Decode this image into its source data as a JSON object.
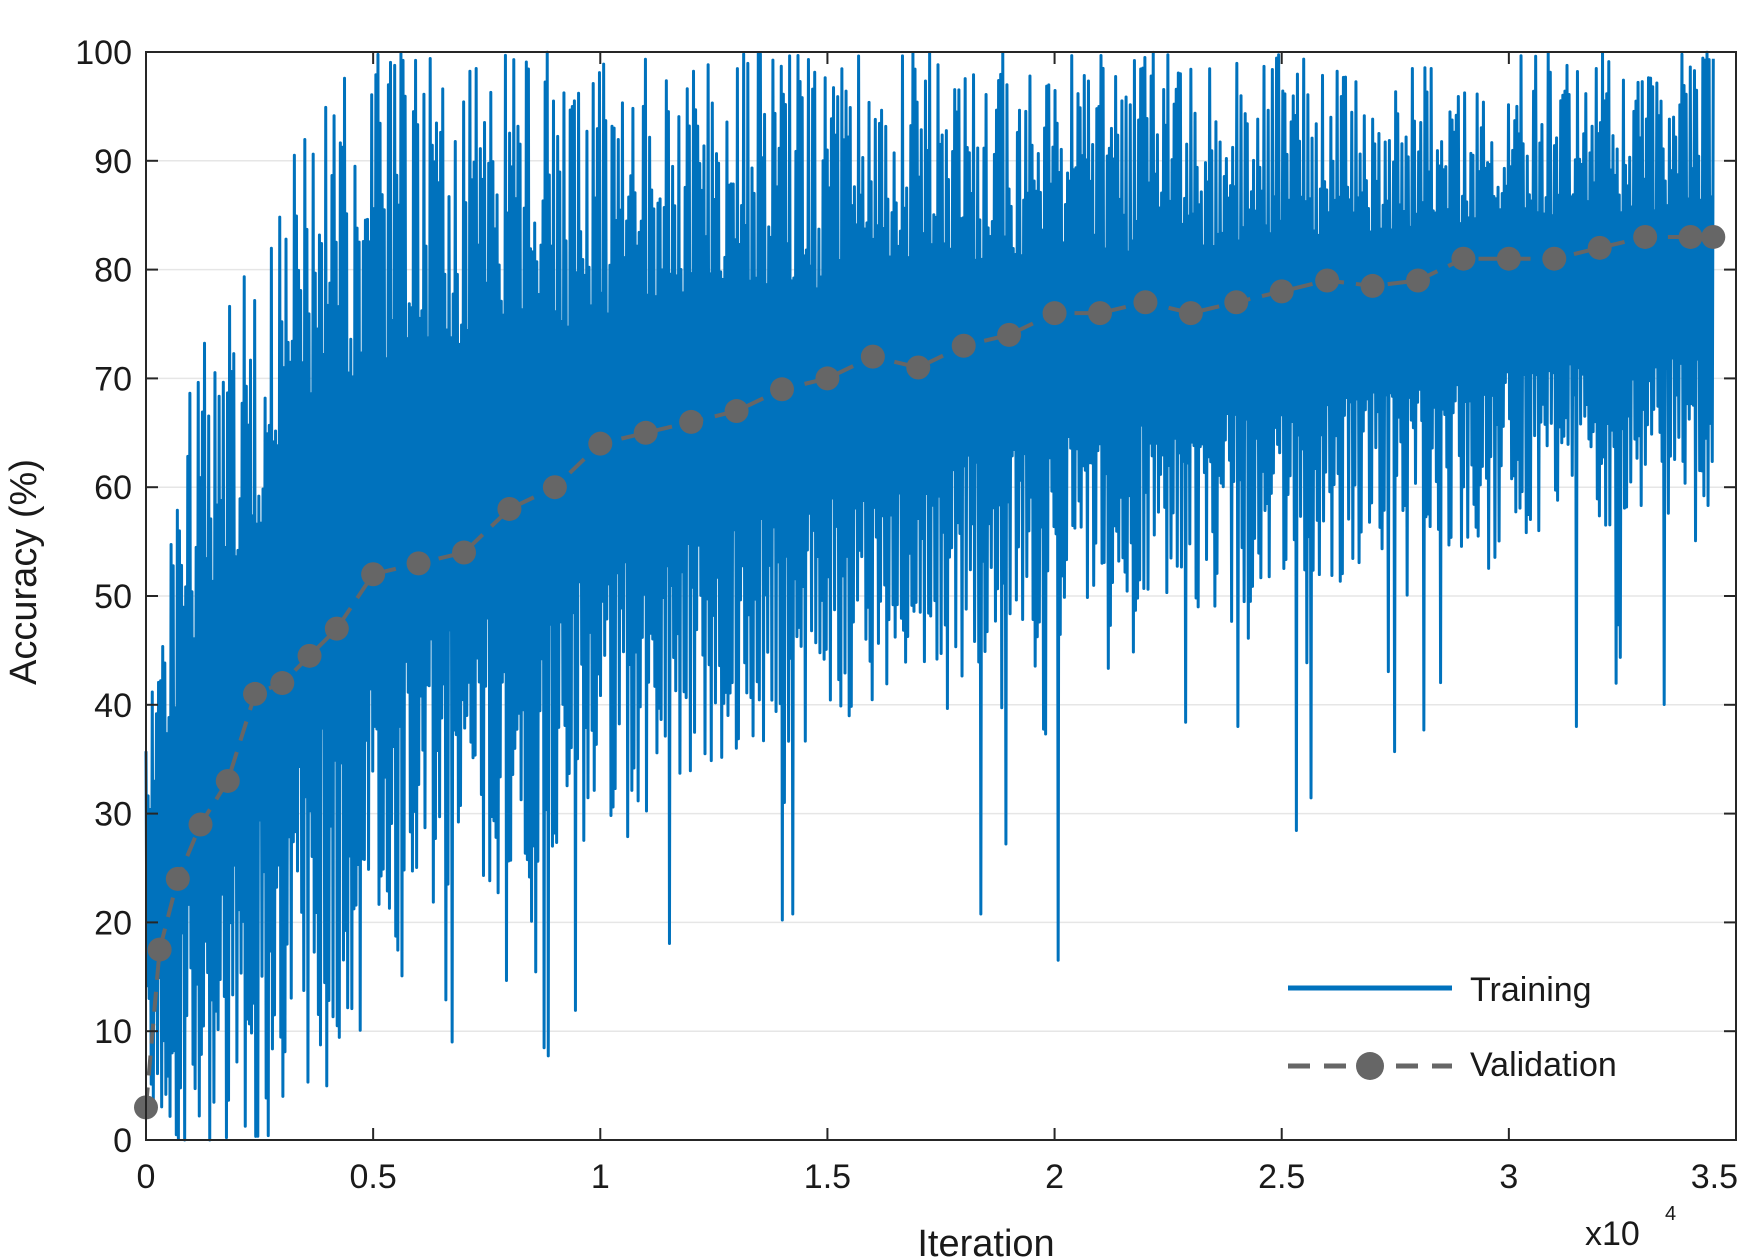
{
  "chart_data": {
    "type": "line",
    "xlabel": "Iteration",
    "ylabel": "Accuracy (%)",
    "x_multiplier_label": "x10",
    "x_multiplier_exponent": "4",
    "xlim": [
      0,
      35000
    ],
    "ylim": [
      0,
      100
    ],
    "x_tick_labels": [
      "0",
      "0.5",
      "1",
      "1.5",
      "2",
      "2.5",
      "3",
      "3.5"
    ],
    "y_tick_labels": [
      "0",
      "10",
      "20",
      "30",
      "40",
      "50",
      "60",
      "70",
      "80",
      "90",
      "100"
    ],
    "grid": "horizontal",
    "legend_position": "bottom-right",
    "series": [
      {
        "name": "Training",
        "color": "#0072BD",
        "style": "solid",
        "summary": "noisy per-iteration accuracy; band approximated",
        "x": [
          0,
          500,
          1000,
          2000,
          3000,
          4000,
          5000,
          7000,
          10000,
          13000,
          16000,
          20000,
          25000,
          30000,
          34500
        ],
        "upper": [
          40,
          55,
          70,
          82,
          90,
          97,
          100,
          100,
          100,
          100,
          100,
          100,
          100,
          100,
          100
        ],
        "lower": [
          0,
          0,
          0,
          0,
          2,
          8,
          12,
          20,
          28,
          34,
          40,
          46,
          50,
          55,
          58
        ],
        "min_spikes": [
          0,
          0,
          0,
          0,
          0,
          3,
          5,
          8,
          5,
          18,
          16,
          16,
          27,
          33,
          40
        ]
      },
      {
        "name": "Validation",
        "color": "#666666",
        "style": "dashed-marker",
        "x": [
          0,
          300,
          700,
          1200,
          1800,
          2400,
          3000,
          3600,
          4200,
          5000,
          6000,
          7000,
          8000,
          9000,
          10000,
          11000,
          12000,
          13000,
          14000,
          15000,
          16000,
          17000,
          18000,
          19000,
          20000,
          21000,
          22000,
          23000,
          24000,
          25000,
          26000,
          27000,
          28000,
          29000,
          30000,
          31000,
          32000,
          33000,
          34000,
          34500
        ],
        "values": [
          3,
          17.5,
          24,
          29,
          33,
          41,
          42,
          44.5,
          47,
          52,
          53,
          54,
          58,
          60,
          64,
          65,
          66,
          67,
          69,
          70,
          72,
          71,
          73,
          74,
          76,
          76,
          77,
          76,
          77,
          78,
          79,
          78.5,
          79,
          81,
          81,
          81,
          82,
          83,
          83,
          83
        ]
      }
    ]
  }
}
